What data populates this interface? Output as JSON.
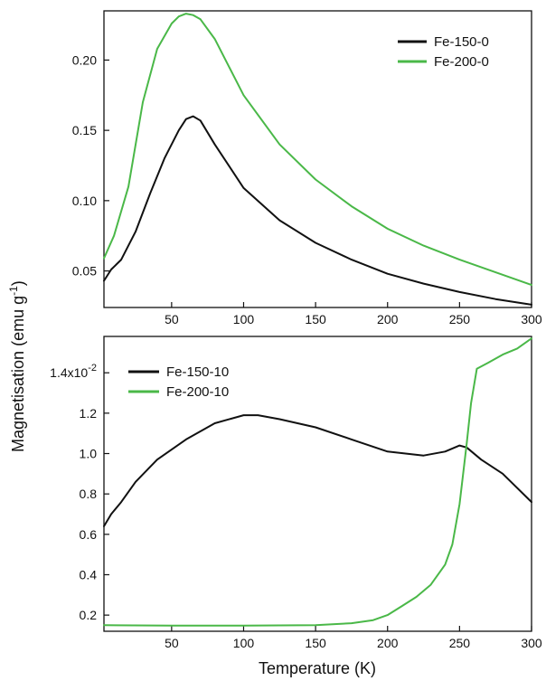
{
  "colors": {
    "black_series": "#111111",
    "green_series": "#4ab848",
    "axis": "#111111"
  },
  "shared": {
    "ylabel": "Magnetisation (emu g",
    "ylabel_sup": "-1",
    "ylabel_close": ")",
    "xlabel": "Temperature (K)"
  },
  "chart_data": [
    {
      "type": "line",
      "panel": "top",
      "xlim": [
        3,
        300
      ],
      "ylim": [
        0.024,
        0.235
      ],
      "xticks": [
        50,
        100,
        150,
        200,
        250,
        300
      ],
      "xtick_labels": [
        "50",
        "100",
        "150",
        "200",
        "250",
        "300"
      ],
      "yticks": [
        0.05,
        0.1,
        0.15,
        0.2
      ],
      "ytick_labels": [
        "0.05",
        "0.10",
        "0.15",
        "0.20"
      ],
      "legend_position": "top-right",
      "series": [
        {
          "name": "Fe-150-0",
          "color": "#111111",
          "x": [
            3,
            8,
            15,
            25,
            35,
            45,
            55,
            60,
            65,
            70,
            80,
            100,
            125,
            150,
            175,
            200,
            225,
            250,
            275,
            300
          ],
          "y": [
            0.043,
            0.051,
            0.058,
            0.078,
            0.105,
            0.13,
            0.15,
            0.158,
            0.16,
            0.157,
            0.14,
            0.109,
            0.086,
            0.07,
            0.058,
            0.048,
            0.041,
            0.035,
            0.03,
            0.026
          ]
        },
        {
          "name": "Fe-200-0",
          "color": "#4ab848",
          "x": [
            3,
            10,
            20,
            30,
            40,
            50,
            55,
            60,
            65,
            70,
            80,
            100,
            125,
            150,
            175,
            200,
            225,
            250,
            275,
            300
          ],
          "y": [
            0.059,
            0.075,
            0.11,
            0.17,
            0.208,
            0.226,
            0.231,
            0.233,
            0.232,
            0.229,
            0.215,
            0.175,
            0.14,
            0.115,
            0.096,
            0.08,
            0.068,
            0.058,
            0.049,
            0.04
          ]
        }
      ]
    },
    {
      "type": "line",
      "panel": "bottom",
      "xlim": [
        3,
        300
      ],
      "ylim": [
        0.12,
        1.58
      ],
      "xticks": [
        50,
        100,
        150,
        200,
        250,
        300
      ],
      "xtick_labels": [
        "50",
        "100",
        "150",
        "200",
        "250",
        "300"
      ],
      "yticks": [
        0.2,
        0.4,
        0.6,
        0.8,
        1.0,
        1.2
      ],
      "ytick_labels": [
        "0.2",
        "0.4",
        "0.6",
        "0.8",
        "1.0",
        "1.2"
      ],
      "top_tick": {
        "value": 1.4,
        "label": "1.4x10",
        "exponent": "-2"
      },
      "legend_position": "top-left",
      "series": [
        {
          "name": "Fe-150-10",
          "color": "#111111",
          "x": [
            3,
            8,
            15,
            25,
            40,
            60,
            80,
            100,
            110,
            125,
            150,
            175,
            200,
            225,
            240,
            250,
            255,
            265,
            280,
            300
          ],
          "y": [
            0.64,
            0.7,
            0.76,
            0.86,
            0.97,
            1.07,
            1.15,
            1.19,
            1.19,
            1.17,
            1.13,
            1.07,
            1.01,
            0.99,
            1.01,
            1.04,
            1.03,
            0.97,
            0.9,
            0.76
          ]
        },
        {
          "name": "Fe-200-10",
          "color": "#4ab848",
          "x": [
            3,
            50,
            100,
            150,
            175,
            190,
            200,
            210,
            220,
            230,
            240,
            245,
            250,
            255,
            258,
            262,
            270,
            280,
            290,
            300
          ],
          "y": [
            0.15,
            0.148,
            0.148,
            0.15,
            0.16,
            0.175,
            0.2,
            0.245,
            0.29,
            0.35,
            0.45,
            0.55,
            0.75,
            1.05,
            1.25,
            1.42,
            1.45,
            1.49,
            1.52,
            1.57
          ]
        }
      ]
    }
  ]
}
